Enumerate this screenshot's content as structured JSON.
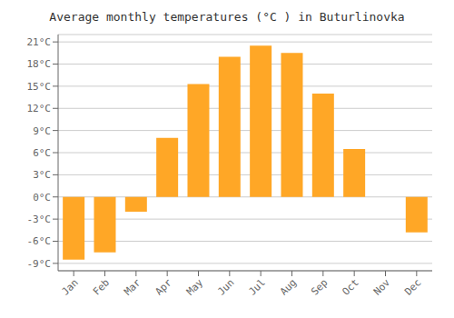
{
  "chart_data": {
    "type": "bar",
    "title": "Average monthly temperatures (°C ) in Buturlinovka",
    "categories": [
      "Jan",
      "Feb",
      "Mar",
      "Apr",
      "May",
      "Jun",
      "Jul",
      "Aug",
      "Sep",
      "Oct",
      "Nov",
      "Dec"
    ],
    "values": [
      -8.5,
      -7.5,
      -2.0,
      8.0,
      15.3,
      19.0,
      20.5,
      19.5,
      14.0,
      6.5,
      0.0,
      -4.8
    ],
    "color": "#FFA726",
    "ylim": [
      -10,
      22
    ],
    "yticks": [
      {
        "value": -9,
        "label": "-9°C"
      },
      {
        "value": -6,
        "label": "-6°C"
      },
      {
        "value": -3,
        "label": "-3°C"
      },
      {
        "value": 0,
        "label": "0°C"
      },
      {
        "value": 3,
        "label": "3°C"
      },
      {
        "value": 6,
        "label": "6°C"
      },
      {
        "value": 9,
        "label": "9°C"
      },
      {
        "value": 12,
        "label": "12°C"
      },
      {
        "value": 15,
        "label": "15°C"
      },
      {
        "value": 18,
        "label": "18°C"
      },
      {
        "value": 21,
        "label": "21°C"
      }
    ],
    "grid": true
  }
}
